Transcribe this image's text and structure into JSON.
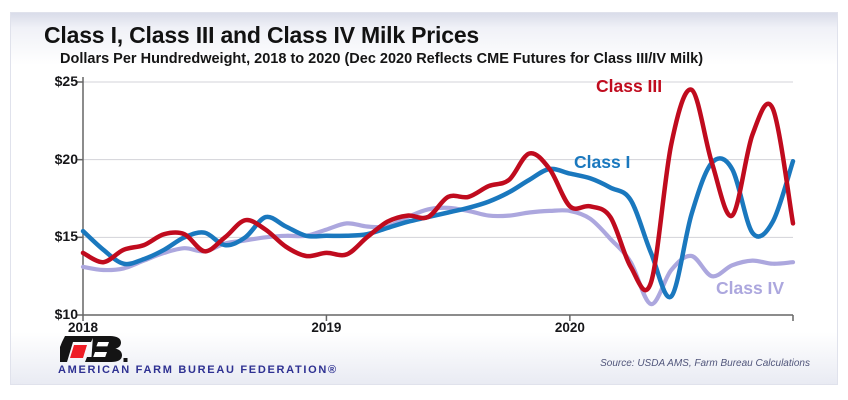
{
  "slide": {
    "title": "Class I, Class III and Class IV Milk Prices",
    "subtitle": "Dollars Per Hundredweight, 2018 to 2020 (Dec 2020 Reflects CME Futures for Class III/IV Milk)",
    "source": "Source: USDA AMS, Farm Bureau Calculations",
    "footer_org": "AMERICAN FARM BUREAU FEDERATION®"
  },
  "chart_data": {
    "type": "line",
    "title": "Class I, Class III and Class IV Milk Prices",
    "subtitle": "Dollars Per Hundredweight, 2018 to 2020 (Dec 2020 Reflects CME Futures for Class III/IV Milk)",
    "x_unit": "month",
    "x_range": "Jan 2018 - Dec 2020",
    "x_ticks": [
      {
        "label": "2018",
        "month": 0
      },
      {
        "label": "2019",
        "month": 12
      },
      {
        "label": "2020",
        "month": 24
      }
    ],
    "y_ticks": [
      {
        "label": "$10",
        "value": 10
      },
      {
        "label": "$15",
        "value": 15
      },
      {
        "label": "$20",
        "value": 20
      },
      {
        "label": "$25",
        "value": 25
      }
    ],
    "ylim": [
      10,
      25
    ],
    "grid": "horizontal",
    "legend_position": "inline-labels-near-lines",
    "axis_color": "#666666",
    "grid_color": "#d3d3d8",
    "series": [
      {
        "name": "Class I",
        "color": "#1a78be",
        "values": [
          15.4,
          14.2,
          13.3,
          13.6,
          14.2,
          15.0,
          15.3,
          14.5,
          15.0,
          16.3,
          15.7,
          15.1,
          15.1,
          15.1,
          15.2,
          15.6,
          16.0,
          16.3,
          16.6,
          16.9,
          17.3,
          17.9,
          18.7,
          19.4,
          19.1,
          18.8,
          18.2,
          17.4,
          14.0,
          11.2,
          16.5,
          19.8,
          19.4,
          15.3,
          16.0,
          19.9
        ]
      },
      {
        "name": "Class III",
        "color": "#c00b1e",
        "values": [
          14.0,
          13.4,
          14.2,
          14.5,
          15.2,
          15.2,
          14.1,
          15.0,
          16.1,
          15.5,
          14.4,
          13.8,
          14.0,
          13.9,
          15.0,
          16.0,
          16.4,
          16.3,
          17.6,
          17.6,
          18.3,
          18.7,
          20.4,
          19.4,
          17.0,
          17.0,
          16.3,
          13.1,
          12.1,
          21.0,
          24.5,
          19.8,
          16.4,
          21.6,
          23.3,
          15.9
        ]
      },
      {
        "name": "Class IV",
        "color": "#aca7de",
        "values": [
          13.1,
          12.9,
          13.0,
          13.5,
          14.0,
          14.3,
          14.1,
          14.6,
          14.8,
          15.0,
          15.1,
          15.1,
          15.5,
          15.9,
          15.7,
          15.7,
          16.3,
          16.8,
          16.9,
          16.7,
          16.4,
          16.4,
          16.6,
          16.7,
          16.7,
          16.2,
          14.9,
          13.4,
          10.7,
          12.9,
          13.8,
          12.5,
          13.2,
          13.5,
          13.3,
          13.4
        ]
      }
    ]
  }
}
